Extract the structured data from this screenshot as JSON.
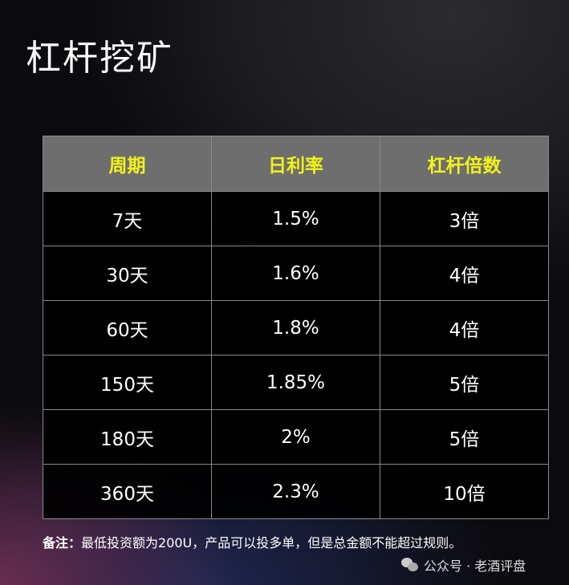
{
  "title": "杠杆挖矿",
  "table": {
    "headers": [
      "周期",
      "日利率",
      "杠杆倍数"
    ],
    "rows": [
      [
        "7天",
        "1.5%",
        "3倍"
      ],
      [
        "30天",
        "1.6%",
        "4倍"
      ],
      [
        "60天",
        "1.8%",
        "4倍"
      ],
      [
        "150天",
        "1.85%",
        "5倍"
      ],
      [
        "180天",
        "2%",
        "5倍"
      ],
      [
        "360天",
        "2.3%",
        "10倍"
      ]
    ]
  },
  "note": {
    "label": "备注：",
    "text": "最低投资额为200U，产品可以投多单，但是总金额不能超过规则。"
  },
  "watermark": {
    "icon": "wechat-icon",
    "text": "公众号 · 老酒评盘"
  },
  "colors": {
    "header_text": "#f2f21a",
    "header_bg": "#6e6e6e"
  }
}
